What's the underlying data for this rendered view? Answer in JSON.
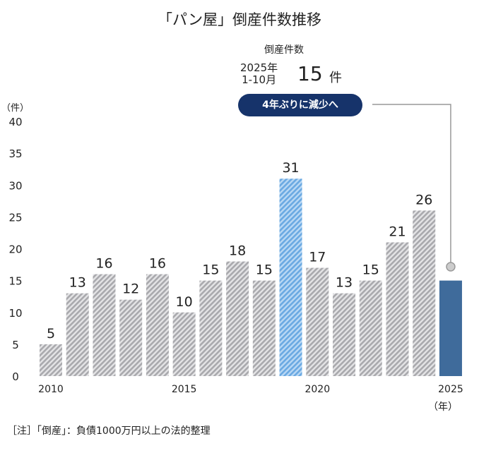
{
  "chart_data": {
    "type": "bar",
    "title": "「パン屋」倒産件数推移",
    "ylabel": "（件）",
    "xlabel": "（年）",
    "ylim": [
      0,
      40
    ],
    "yticks": [
      0,
      5,
      10,
      15,
      20,
      25,
      30,
      35,
      40
    ],
    "xtick_labels": [
      "2010",
      "2015",
      "2020",
      "2025"
    ],
    "categories": [
      "2010",
      "2011",
      "2012",
      "2013",
      "2014",
      "2015",
      "2016",
      "2017",
      "2018",
      "2019",
      "2020",
      "2021",
      "2022",
      "2023",
      "2024",
      "2025"
    ],
    "values": [
      5,
      13,
      16,
      12,
      16,
      10,
      15,
      18,
      15,
      31,
      17,
      13,
      15,
      21,
      26,
      15
    ],
    "highlight": {
      "2019": "#7ab3e6",
      "2025": "#3f6b9b"
    },
    "default_color": "#a9a9ad",
    "grid": false,
    "annotation": {
      "heading": "倒産件数",
      "period_line1": "2025年",
      "period_line2": "1-10月",
      "value": "15",
      "unit": "件",
      "badge": "4年ぶりに減少へ",
      "badge_color": "#16336a"
    }
  },
  "note": "［注］「倒産」：負債1000万円以上の法的整理"
}
